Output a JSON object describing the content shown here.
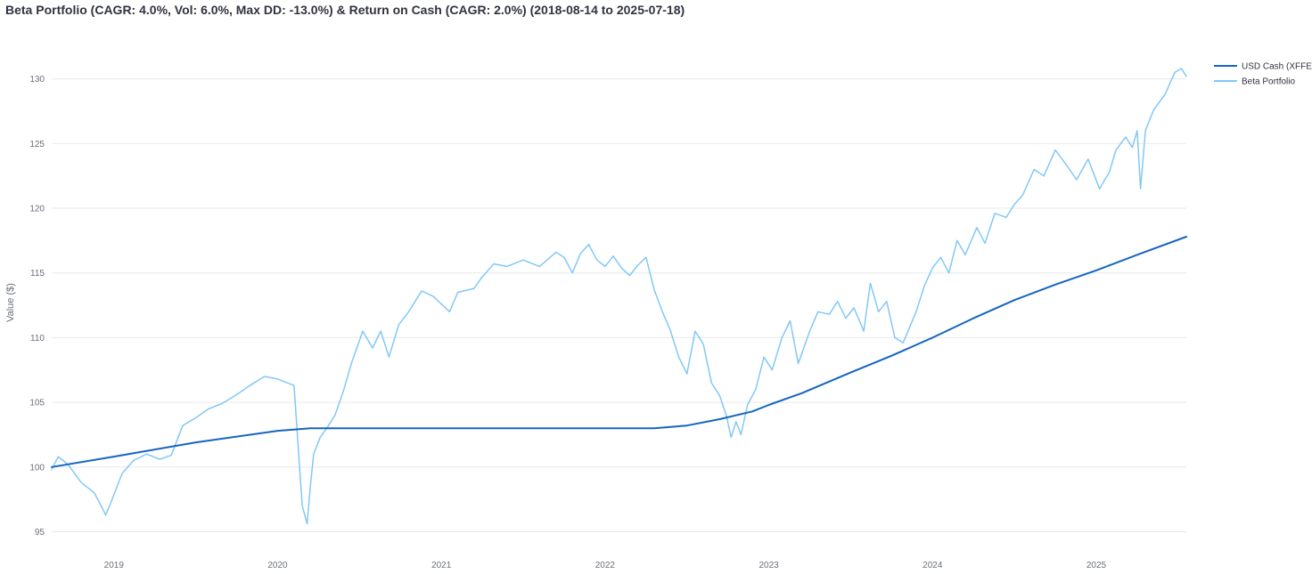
{
  "chart_data": {
    "type": "line",
    "title": "Beta Portfolio (CAGR: 4.0%, Vol: 6.0%, Max DD: -13.0%) & Return on Cash (CAGR: 2.0%)  (2018-08-14 to 2025-07-18)",
    "xlabel": "",
    "ylabel": "Value ($)",
    "xlim": [
      2018.62,
      2025.55
    ],
    "ylim": [
      94,
      133
    ],
    "grid": true,
    "legend_position": "top-right",
    "x_ticks": [
      {
        "value": 2019,
        "label": "2019"
      },
      {
        "value": 2020,
        "label": "2020"
      },
      {
        "value": 2021,
        "label": "2021"
      },
      {
        "value": 2022,
        "label": "2022"
      },
      {
        "value": 2023,
        "label": "2023"
      },
      {
        "value": 2024,
        "label": "2024"
      },
      {
        "value": 2025,
        "label": "2025"
      }
    ],
    "y_ticks": [
      {
        "value": 95,
        "label": "95"
      },
      {
        "value": 100,
        "label": "100"
      },
      {
        "value": 105,
        "label": "105"
      },
      {
        "value": 110,
        "label": "110"
      },
      {
        "value": 115,
        "label": "115"
      },
      {
        "value": 120,
        "label": "120"
      },
      {
        "value": 125,
        "label": "125"
      },
      {
        "value": 130,
        "label": "130"
      }
    ],
    "series": [
      {
        "name": "USD Cash (XFFE)",
        "color": "#1565c0",
        "x": [
          2018.62,
          2019.0,
          2019.5,
          2020.0,
          2020.2,
          2020.5,
          2021.0,
          2021.5,
          2022.0,
          2022.3,
          2022.5,
          2022.7,
          2022.9,
          2023.0,
          2023.2,
          2023.5,
          2023.75,
          2024.0,
          2024.25,
          2024.5,
          2024.75,
          2025.0,
          2025.25,
          2025.55
        ],
        "values": [
          100.0,
          100.8,
          101.9,
          102.8,
          103.0,
          103.0,
          103.0,
          103.0,
          103.0,
          103.0,
          103.2,
          103.7,
          104.3,
          104.8,
          105.7,
          107.3,
          108.6,
          110.0,
          111.5,
          112.9,
          114.1,
          115.2,
          116.4,
          117.8
        ]
      },
      {
        "name": "Beta Portfolio",
        "color": "#82c8f5",
        "x": [
          2018.62,
          2018.66,
          2018.72,
          2018.8,
          2018.88,
          2018.95,
          2018.98,
          2019.05,
          2019.12,
          2019.2,
          2019.28,
          2019.35,
          2019.42,
          2019.5,
          2019.58,
          2019.66,
          2019.75,
          2019.83,
          2019.92,
          2020.0,
          2020.1,
          2020.15,
          2020.18,
          2020.2,
          2020.22,
          2020.26,
          2020.3,
          2020.35,
          2020.4,
          2020.45,
          2020.52,
          2020.58,
          2020.63,
          2020.68,
          2020.74,
          2020.8,
          2020.88,
          2020.95,
          2021.05,
          2021.1,
          2021.2,
          2021.25,
          2021.32,
          2021.4,
          2021.5,
          2021.6,
          2021.7,
          2021.75,
          2021.8,
          2021.85,
          2021.9,
          2021.95,
          2022.0,
          2022.05,
          2022.1,
          2022.15,
          2022.2,
          2022.25,
          2022.3,
          2022.35,
          2022.4,
          2022.45,
          2022.5,
          2022.55,
          2022.6,
          2022.65,
          2022.7,
          2022.74,
          2022.77,
          2022.8,
          2022.83,
          2022.87,
          2022.92,
          2022.97,
          2023.02,
          2023.08,
          2023.13,
          2023.18,
          2023.25,
          2023.3,
          2023.37,
          2023.42,
          2023.47,
          2023.52,
          2023.58,
          2023.62,
          2023.67,
          2023.72,
          2023.77,
          2023.82,
          2023.9,
          2023.95,
          2024.0,
          2024.05,
          2024.1,
          2024.15,
          2024.2,
          2024.27,
          2024.32,
          2024.38,
          2024.45,
          2024.5,
          2024.55,
          2024.62,
          2024.68,
          2024.75,
          2024.82,
          2024.88,
          2024.95,
          2025.02,
          2025.08,
          2025.12,
          2025.18,
          2025.22,
          2025.25,
          2025.27,
          2025.3,
          2025.35,
          2025.42,
          2025.48,
          2025.52,
          2025.55
        ],
        "values": [
          99.8,
          100.8,
          100.2,
          98.8,
          98.0,
          96.3,
          97.2,
          99.5,
          100.5,
          101.0,
          100.6,
          100.9,
          103.2,
          103.8,
          104.5,
          104.9,
          105.6,
          106.3,
          107.0,
          106.8,
          106.3,
          97.0,
          95.6,
          98.5,
          101.0,
          102.3,
          103.0,
          104.0,
          105.8,
          108.0,
          110.5,
          109.2,
          110.5,
          108.5,
          111.0,
          112.0,
          113.6,
          113.2,
          112.0,
          113.5,
          113.8,
          114.7,
          115.7,
          115.5,
          116.0,
          115.5,
          116.6,
          116.2,
          115.0,
          116.5,
          117.2,
          116.0,
          115.5,
          116.3,
          115.4,
          114.8,
          115.6,
          116.2,
          113.7,
          112.0,
          110.5,
          108.5,
          107.2,
          110.5,
          109.5,
          106.5,
          105.5,
          104.0,
          102.3,
          103.5,
          102.5,
          104.8,
          106.0,
          108.5,
          107.5,
          110.0,
          111.3,
          108.0,
          110.5,
          112.0,
          111.8,
          112.8,
          111.5,
          112.3,
          110.5,
          114.2,
          112.0,
          112.8,
          110.0,
          109.6,
          112.0,
          114.0,
          115.4,
          116.2,
          115.0,
          117.5,
          116.4,
          118.5,
          117.3,
          119.6,
          119.3,
          120.3,
          121.0,
          123.0,
          122.5,
          124.5,
          123.3,
          122.2,
          123.8,
          121.5,
          122.8,
          124.5,
          125.5,
          124.7,
          126.0,
          121.5,
          126.0,
          127.6,
          128.8,
          130.5,
          130.8,
          130.2
        ]
      }
    ]
  }
}
